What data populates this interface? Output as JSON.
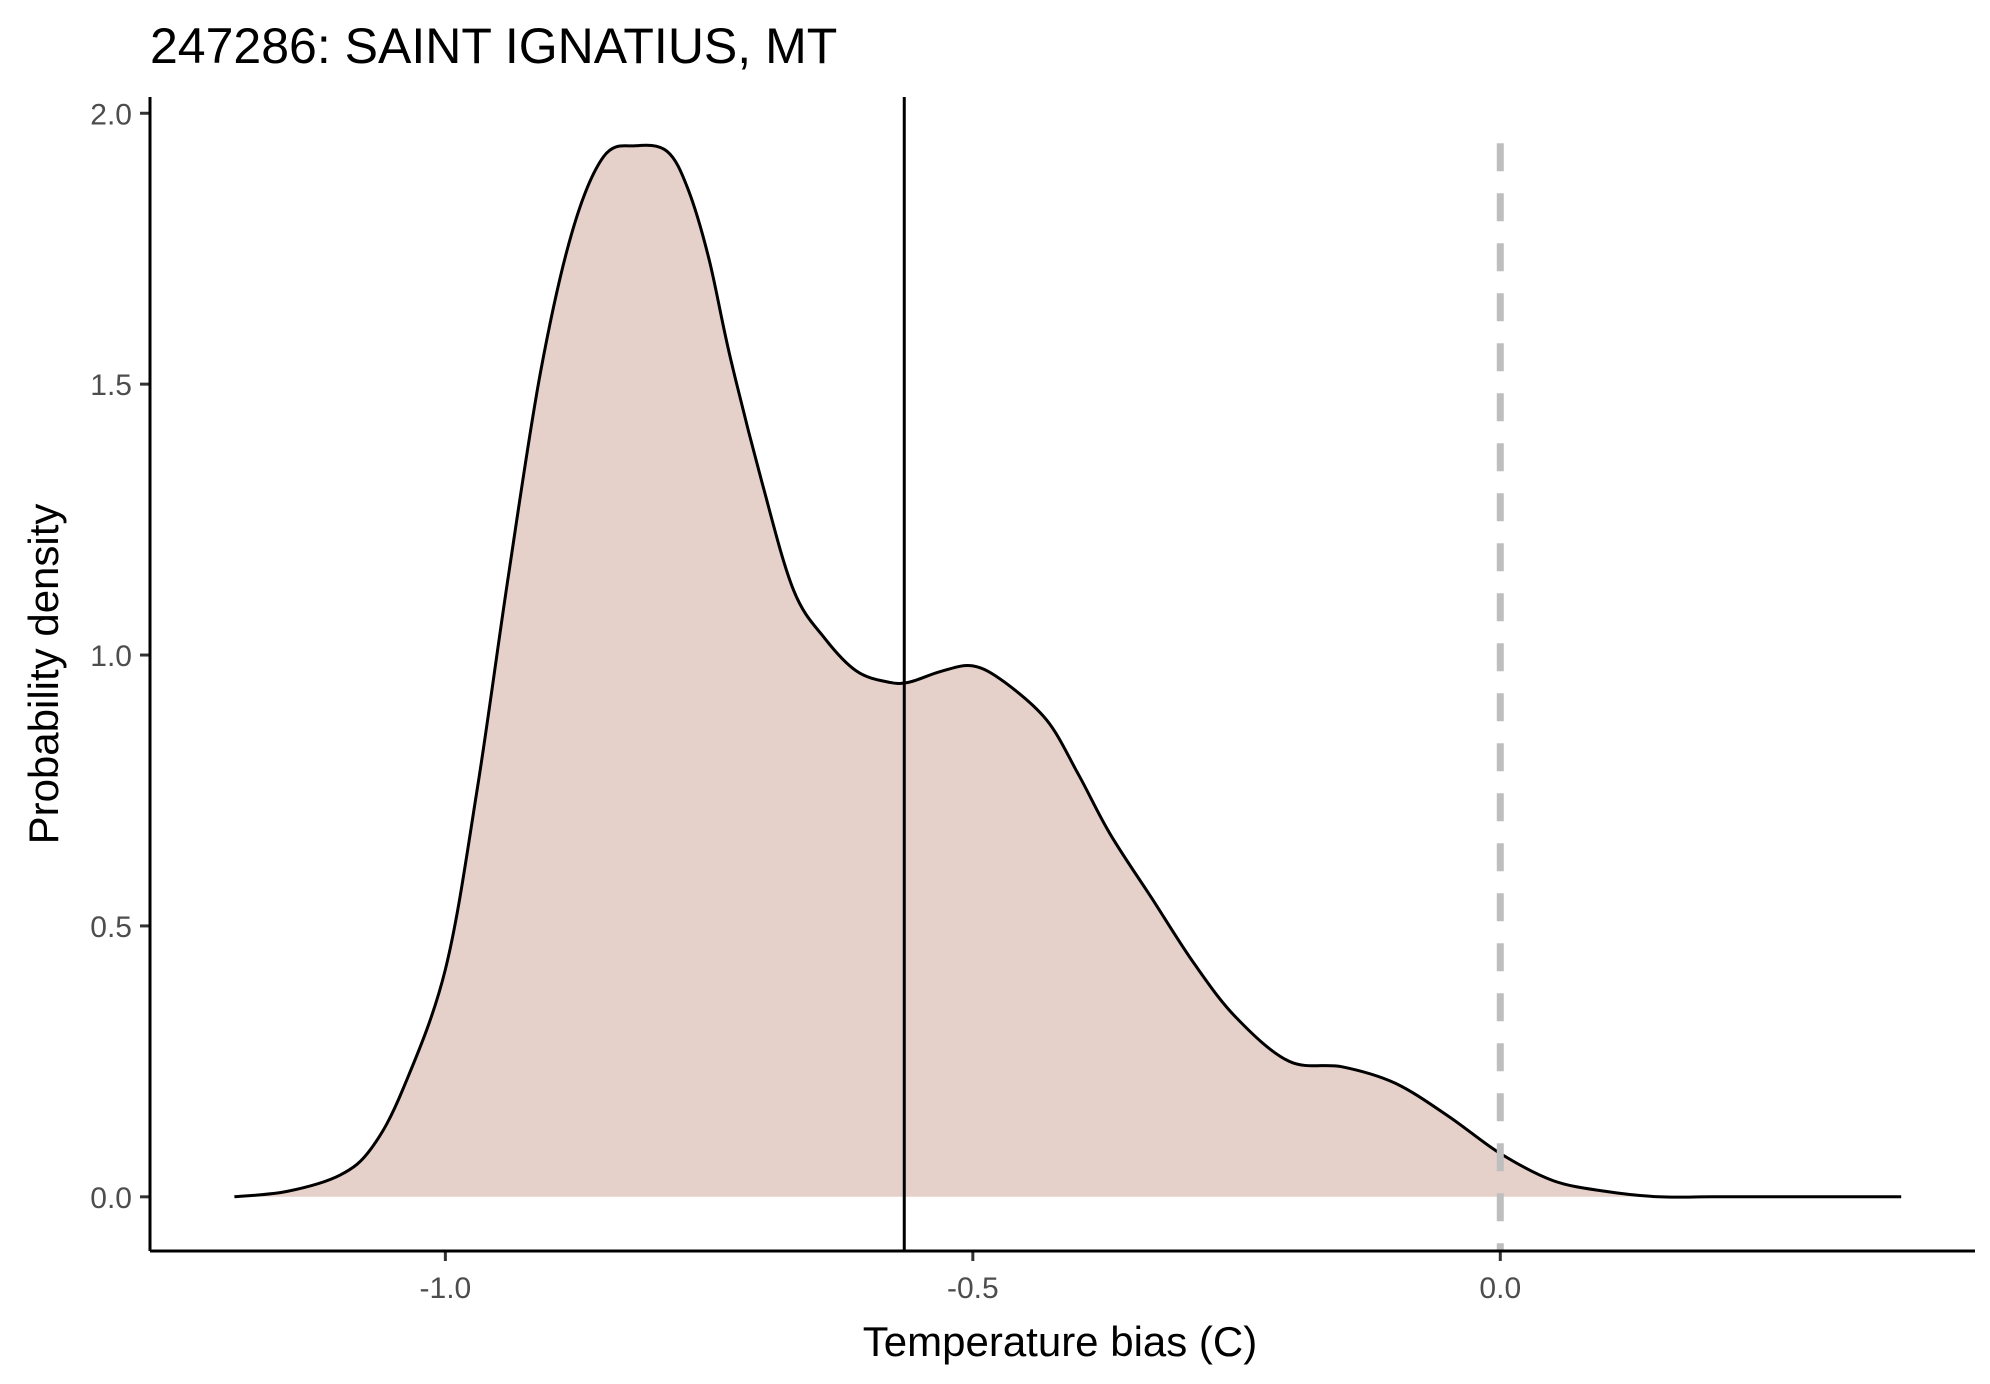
{
  "chart_data": {
    "type": "area",
    "title": "247286: SAINT IGNATIUS, MT",
    "xlabel": "Temperature bias (C)",
    "ylabel": "Probability density",
    "xlim": [
      -1.28,
      0.45
    ],
    "ylim": [
      -0.1,
      2.03
    ],
    "x_ticks": [
      {
        "value": -1.0,
        "label": "-1.0"
      },
      {
        "value": -0.5,
        "label": "-0.5"
      },
      {
        "value": 0.0,
        "label": "0.0"
      }
    ],
    "y_ticks": [
      {
        "value": 0.0,
        "label": "0.0"
      },
      {
        "value": 0.5,
        "label": "0.5"
      },
      {
        "value": 1.0,
        "label": "1.0"
      },
      {
        "value": 1.5,
        "label": "1.5"
      },
      {
        "value": 2.0,
        "label": "2.0"
      }
    ],
    "grid": false,
    "legend": "none",
    "series": [
      {
        "fill_color": "#e6d0ca",
        "line_color": "#000000",
        "x": [
          -1.2,
          -1.15,
          -1.1,
          -1.07,
          -1.04,
          -1.0,
          -0.97,
          -0.94,
          -0.91,
          -0.88,
          -0.85,
          -0.82,
          -0.79,
          -0.77,
          -0.75,
          -0.73,
          -0.7,
          -0.67,
          -0.64,
          -0.61,
          -0.58,
          -0.56,
          -0.53,
          -0.5,
          -0.47,
          -0.43,
          -0.4,
          -0.37,
          -0.33,
          -0.29,
          -0.25,
          -0.2,
          -0.15,
          -0.1,
          -0.05,
          0.0,
          0.05,
          0.1,
          0.15,
          0.2,
          0.25,
          0.3,
          0.38
        ],
        "y": [
          0.0,
          0.01,
          0.04,
          0.09,
          0.2,
          0.42,
          0.75,
          1.15,
          1.52,
          1.78,
          1.92,
          1.94,
          1.93,
          1.86,
          1.73,
          1.55,
          1.32,
          1.12,
          1.03,
          0.97,
          0.95,
          0.95,
          0.97,
          0.98,
          0.95,
          0.88,
          0.78,
          0.67,
          0.55,
          0.43,
          0.33,
          0.25,
          0.24,
          0.21,
          0.15,
          0.08,
          0.03,
          0.01,
          0.0,
          0.0,
          0.0,
          0.0,
          0.0
        ]
      }
    ],
    "reference_lines": [
      {
        "x": -0.565,
        "style": "solid",
        "color": "#000000"
      },
      {
        "x": 0.0,
        "style": "dashed",
        "color": "#bebebe"
      }
    ]
  }
}
